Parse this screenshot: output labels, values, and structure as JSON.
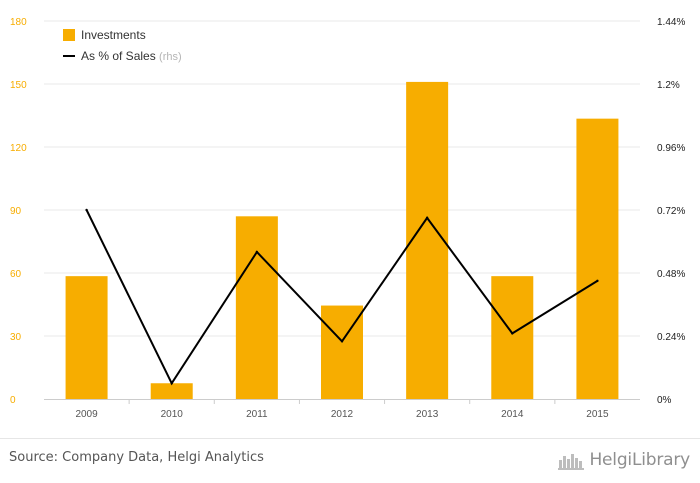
{
  "colors": {
    "bar": "#f7ad00",
    "line": "#000000",
    "left_axis_text": "#f7ad00",
    "right_axis_text": "#222222",
    "grid": "#e9e9e9",
    "footer_text": "#555555"
  },
  "footer": {
    "source": "Source: Company Data, Helgi Analytics",
    "brand": "HelgiLibrary"
  },
  "chart_data": {
    "type": "bar",
    "categories": [
      "2009",
      "2010",
      "2011",
      "2012",
      "2013",
      "2014",
      "2015"
    ],
    "series": [
      {
        "name": "Investments",
        "type": "bar",
        "axis": "left",
        "values": [
          58.5,
          7.5,
          87,
          44.5,
          151,
          58.5,
          133.5
        ]
      },
      {
        "name": "As % of Sales",
        "name_suffix": "(rhs)",
        "type": "line",
        "axis": "right",
        "values": [
          0.72,
          0.06,
          0.56,
          0.22,
          0.69,
          0.25,
          0.45
        ]
      }
    ],
    "left_axis": {
      "ylim": [
        0,
        180
      ],
      "ticks": [
        0,
        30,
        60,
        90,
        120,
        150,
        180
      ],
      "tick_labels": [
        "0",
        "30",
        "60",
        "90",
        "120",
        "150",
        "180"
      ]
    },
    "right_axis": {
      "ylim": [
        0,
        1.44
      ],
      "ticks": [
        0,
        0.24,
        0.48,
        0.72,
        0.96,
        1.2,
        1.44
      ],
      "tick_labels": [
        "0%",
        "0.24%",
        "0.48%",
        "0.72%",
        "0.96%",
        "1.2%",
        "1.44%"
      ]
    },
    "grid": true,
    "legend": "top-left",
    "title": "",
    "xlabel": "",
    "ylabel": ""
  }
}
